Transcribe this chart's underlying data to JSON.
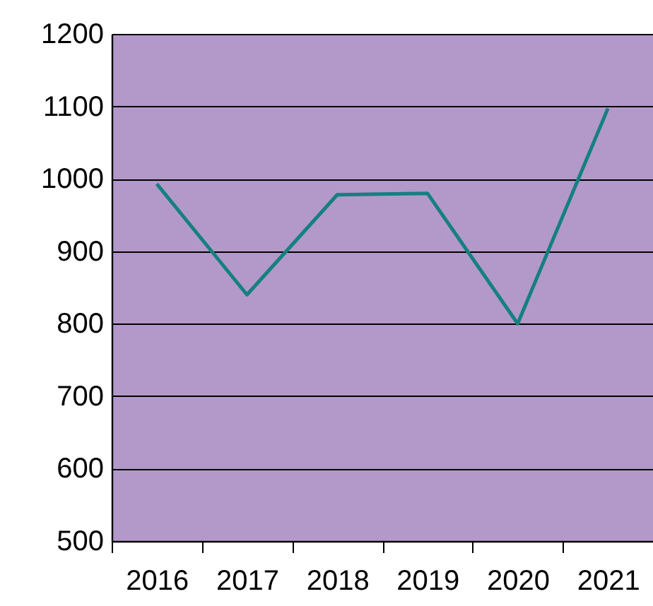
{
  "chart_data": {
    "type": "line",
    "categories": [
      "2016",
      "2017",
      "2018",
      "2019",
      "2020",
      "2021"
    ],
    "series": [
      {
        "color": "#15807f",
        "values": [
          993,
          840,
          978,
          980,
          800,
          1097
        ]
      }
    ],
    "ylim": [
      500,
      1200
    ],
    "yticks": [
      500,
      600,
      700,
      800,
      900,
      1000,
      1100,
      1200
    ],
    "grid": "y",
    "legend": false,
    "marker": "none",
    "line_style": "solid"
  }
}
